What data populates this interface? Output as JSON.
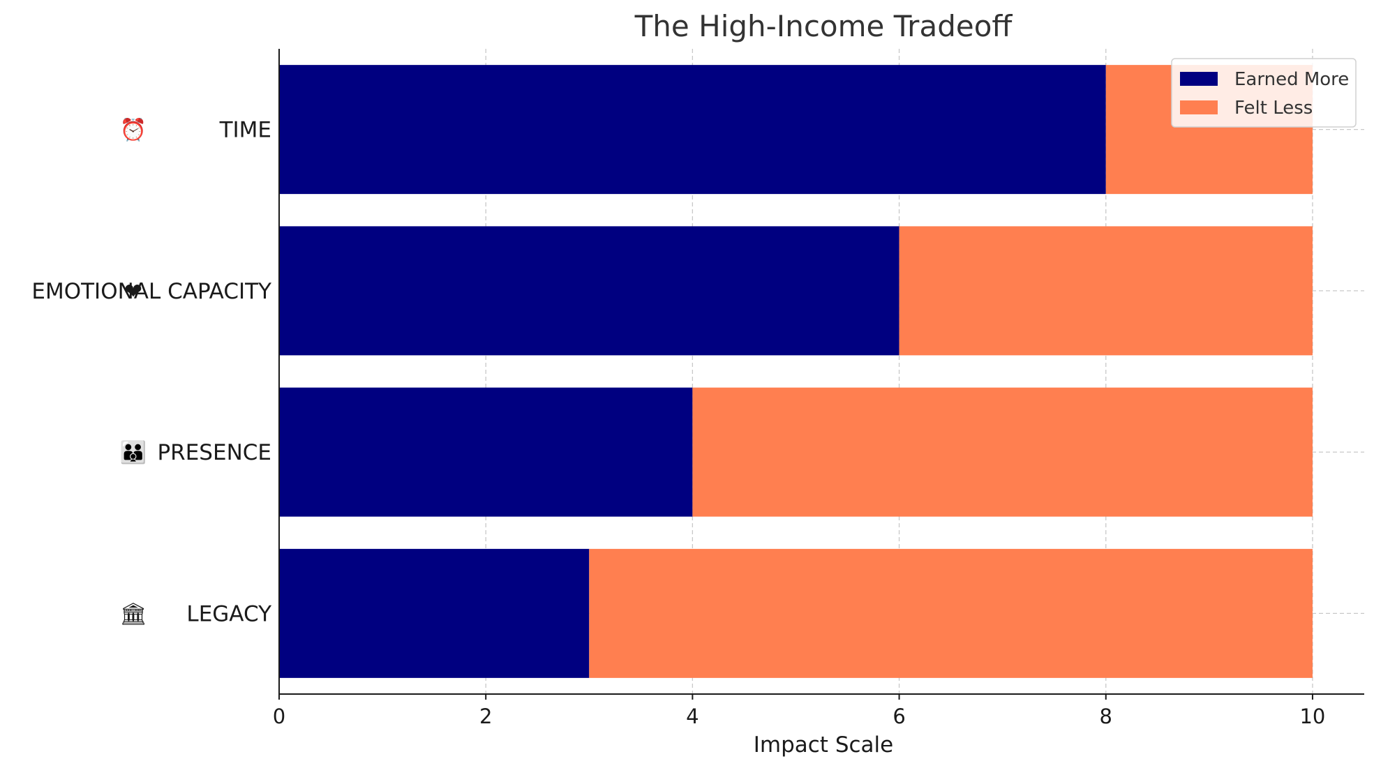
{
  "chart_data": {
    "type": "bar",
    "orientation": "horizontal",
    "stacked": true,
    "title": "The High-Income Tradeoff",
    "xlabel": "Impact Scale",
    "ylabel": "",
    "xlim": [
      0,
      10.5
    ],
    "xticks": [
      0,
      2,
      4,
      6,
      8,
      10
    ],
    "grid": true,
    "legend_position": "top-right",
    "categories": [
      {
        "label": "TIME",
        "icon": "⏰",
        "icon_name": "alarm-clock-icon"
      },
      {
        "label": "EMOTIONAL CAPACITY",
        "icon": "❤",
        "icon_name": "heart-icon"
      },
      {
        "label": "PRESENCE",
        "icon": "👪",
        "icon_name": "family-icon"
      },
      {
        "label": "LEGACY",
        "icon": "🏛",
        "icon_name": "monument-icon"
      }
    ],
    "series": [
      {
        "name": "Earned More",
        "color": "#000080",
        "values": [
          8,
          6,
          4,
          3
        ]
      },
      {
        "name": "Felt Less",
        "color": "#FF7F50",
        "values": [
          2,
          4,
          6,
          7
        ]
      }
    ]
  }
}
